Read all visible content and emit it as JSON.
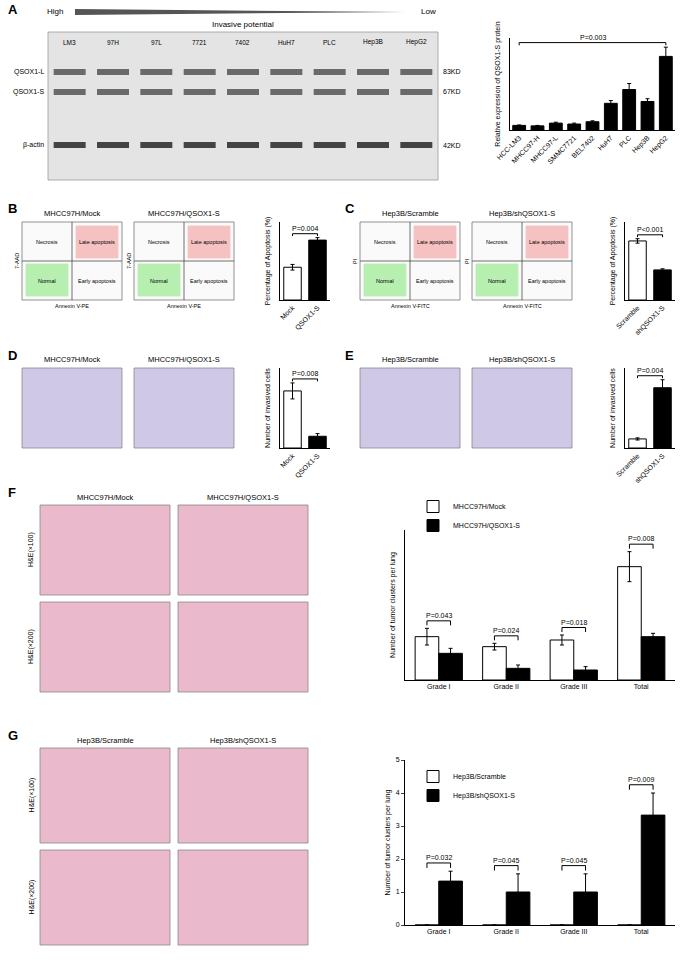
{
  "chart_data": [
    {
      "panel": "A",
      "type": "bar",
      "categories": [
        "HCC-LM3",
        "MHCC97-H",
        "MHCC97-L",
        "SMMC7721",
        "BEL7402",
        "HuH7",
        "PLC",
        "Hep3B",
        "HepG2"
      ],
      "values": [
        1.0,
        0.9,
        1.5,
        1.3,
        1.8,
        5.8,
        8.8,
        6.2,
        16.0
      ],
      "errors": [
        0.1,
        0.1,
        0.2,
        0.2,
        0.2,
        0.6,
        1.3,
        0.6,
        2.0
      ],
      "color": "#000000",
      "y_label": "Relative expression of QSOX1-S protein",
      "ylim": [
        0,
        20
      ],
      "tick_labels": "x",
      "p_values": [
        {
          "text": "P=0.003",
          "from": "HCC-LM3",
          "to": "HepG2"
        }
      ]
    },
    {
      "panel": "B",
      "type": "bar",
      "categories": [
        "Mock",
        "QSOX1-S"
      ],
      "values": [
        10.5,
        19.2
      ],
      "errors": [
        0.9,
        0.8
      ],
      "colors": [
        "#ffffff",
        "#000000"
      ],
      "y_label": "Percentage of Apoptosis (%)",
      "ylim": [
        0,
        25
      ],
      "tick_labels": "x",
      "p_values": [
        {
          "text": "P=0.004",
          "from": "Mock",
          "to": "QSOX1-S"
        }
      ]
    },
    {
      "panel": "C",
      "type": "bar",
      "categories": [
        "Scramble",
        "shQSOX1-S"
      ],
      "values": [
        5.3,
        2.7
      ],
      "errors": [
        0.2,
        0.1
      ],
      "colors": [
        "#ffffff",
        "#000000"
      ],
      "y_label": "Percentage of Apoptosis (%)",
      "ylim": [
        0,
        7
      ],
      "tick_labels": "x",
      "p_values": [
        {
          "text": "P<0.001",
          "from": "Scramble",
          "to": "shQSOX1-S"
        }
      ]
    },
    {
      "panel": "D",
      "type": "bar",
      "categories": [
        "Mock",
        "QSOX1-S"
      ],
      "values": [
        107,
        22
      ],
      "errors": [
        15,
        5
      ],
      "colors": [
        "#ffffff",
        "#000000"
      ],
      "y_label": "Number of invasived cells",
      "ylim": [
        0,
        150
      ],
      "tick_labels": "x",
      "p_values": [
        {
          "text": "P=0.008",
          "from": "Mock",
          "to": "QSOX1-S"
        }
      ]
    },
    {
      "panel": "E",
      "type": "bar",
      "categories": [
        "Scramble",
        "shQSOX1-S"
      ],
      "values": [
        17,
        113
      ],
      "errors": [
        2,
        15
      ],
      "colors": [
        "#ffffff",
        "#000000"
      ],
      "y_label": "Number of invasived cells",
      "ylim": [
        0,
        150
      ],
      "tick_labels": "x",
      "p_values": [
        {
          "text": "P=0.004",
          "from": "Scramble",
          "to": "shQSOX1-S"
        }
      ]
    },
    {
      "panel": "F",
      "type": "bar",
      "categories": [
        "Grade I",
        "Grade II",
        "Grade III",
        "Total"
      ],
      "series": [
        {
          "name": "MHCC97H/Mock",
          "color": "#ffffff",
          "values": [
            1.3,
            1.0,
            1.2,
            3.4
          ],
          "errors": [
            0.25,
            0.1,
            0.15,
            0.45
          ]
        },
        {
          "name": "MHCC97H/QSOX1-S",
          "color": "#000000",
          "values": [
            0.8,
            0.35,
            0.3,
            1.3
          ],
          "errors": [
            0.15,
            0.1,
            0.1,
            0.1
          ]
        }
      ],
      "y_label": "Number of tumor clusters per lung",
      "ylim": [
        0,
        4.5
      ],
      "tick_labels": "x",
      "legend": "top left",
      "p_values": [
        {
          "text": "P=0.043",
          "category": "Grade I"
        },
        {
          "text": "P=0.024",
          "category": "Grade II"
        },
        {
          "text": "P=0.018",
          "category": "Grade III"
        },
        {
          "text": "P=0.008",
          "category": "Total"
        }
      ]
    },
    {
      "panel": "G",
      "type": "bar",
      "categories": [
        "Grade I",
        "Grade II",
        "Grade III",
        "Total"
      ],
      "series": [
        {
          "name": "Hep3B/Scramble",
          "color": "#ffffff",
          "values": [
            0,
            0,
            0,
            0
          ],
          "errors": [
            0,
            0,
            0,
            0
          ]
        },
        {
          "name": "Hep3B/shQSOX1-S",
          "color": "#000000",
          "values": [
            1.33,
            1.0,
            1.0,
            3.33
          ],
          "errors": [
            0.3,
            0.55,
            0.55,
            0.67
          ]
        }
      ],
      "y_label": "Number of tumor clusters per lung",
      "ylim": [
        0,
        5
      ],
      "yticks": [
        0,
        1,
        2,
        3,
        4,
        5
      ],
      "legend": "top left",
      "p_values": [
        {
          "text": "P=0.032",
          "category": "Grade I"
        },
        {
          "text": "P=0.045",
          "category": "Grade II"
        },
        {
          "text": "P=0.045",
          "category": "Grade III"
        },
        {
          "text": "P=0.009",
          "category": "Total"
        }
      ]
    }
  ],
  "image_panels": [
    {
      "panel": "A",
      "type": "blot",
      "high": "High",
      "low": "Low",
      "gradient": "Invasive potential",
      "lanes": [
        "LM3",
        "97H",
        "97L",
        "7721",
        "7402",
        "HuH7",
        "PLC",
        "Hep3B",
        "HepG2"
      ],
      "bands": [
        {
          "label": "QSOX1-L",
          "size": "83KD"
        },
        {
          "label": "QSOX1-S",
          "size": "67KD"
        },
        {
          "label": "β-actin",
          "size": "42KD"
        }
      ]
    },
    {
      "panel": "B",
      "type": "flow",
      "quadrants": [
        "Necrosis",
        "Late apoptosis",
        "Normal",
        "Early apoptosis"
      ],
      "images": [
        {
          "title": "MHCC97H/Mock",
          "x_label": "Annexin V-PE",
          "y_label": "7-AAD"
        },
        {
          "title": "MHCC97H/QSOX1-S",
          "x_label": "Annexin V-PE",
          "y_label": "7-AAD"
        }
      ]
    },
    {
      "panel": "C",
      "type": "flow",
      "quadrants": [
        "Necrosis",
        "Late apoptosis",
        "Normal",
        "Early apoptosis"
      ],
      "images": [
        {
          "title": "Hep3B/Scramble",
          "x_label": "Annexin V-FITC",
          "y_label": "PI"
        },
        {
          "title": "Hep3B/shQSOX1-S",
          "x_label": "Annexin V-FITC",
          "y_label": "PI"
        }
      ]
    },
    {
      "panel": "D",
      "type": "invasion",
      "images": [
        {
          "title": "MHCC97H/Mock"
        },
        {
          "title": "MHCC97H/QSOX1-S"
        }
      ]
    },
    {
      "panel": "E",
      "type": "invasion",
      "images": [
        {
          "title": "Hep3B/Scramble"
        },
        {
          "title": "Hep3B/shQSOX1-S"
        }
      ]
    },
    {
      "panel": "F",
      "type": "histology",
      "rows": [
        "H&E(×100)",
        "H&E(×200)"
      ],
      "images": [
        {
          "title": "MHCC97H/Mock"
        },
        {
          "title": "MHCC97H/QSOX1-S"
        }
      ]
    },
    {
      "panel": "G",
      "type": "histology",
      "rows": [
        "H&E(×100)",
        "H&E(×200)"
      ],
      "images": [
        {
          "title": "Hep3B/Scramble"
        },
        {
          "title": "Hep3B/shQSOX1-S"
        }
      ]
    }
  ]
}
